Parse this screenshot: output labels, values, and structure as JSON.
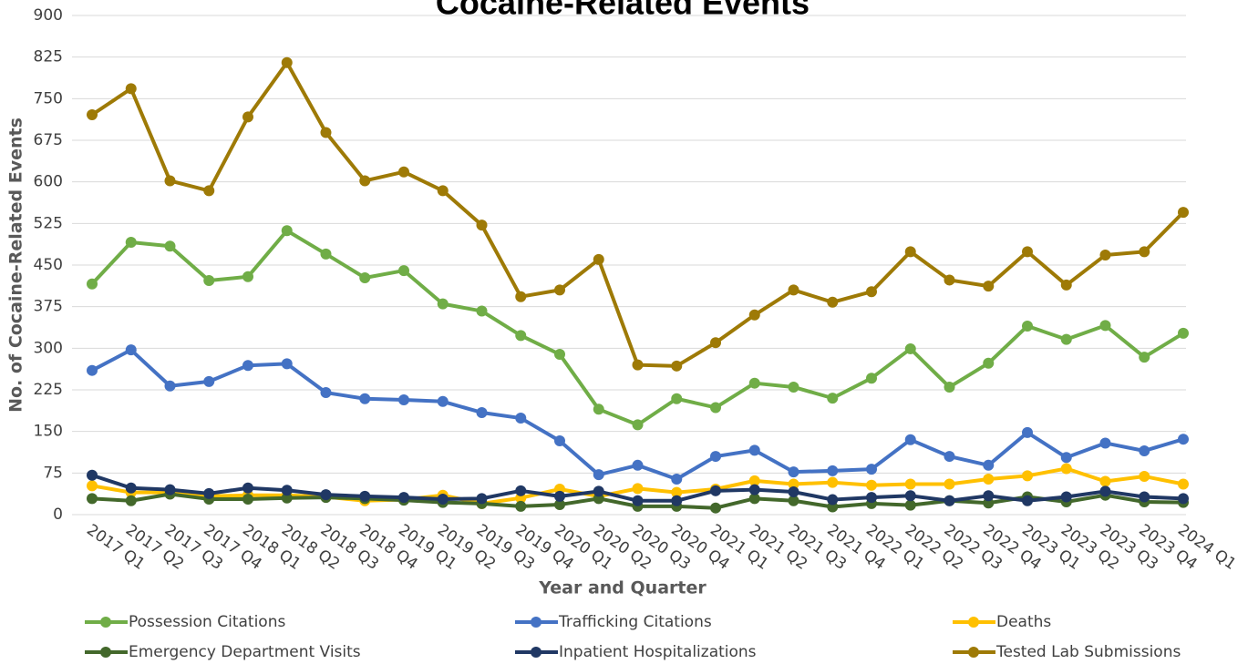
{
  "chart_data": {
    "type": "line",
    "title": "Cocaine-Related Events",
    "x_label": "Year and Quarter",
    "y_label": "No. of Cocaine-Related Events",
    "categories": [
      "2017 Q1",
      "2017 Q2",
      "2017 Q3",
      "2017 Q4",
      "2018 Q1",
      "2018 Q2",
      "2018 Q3",
      "2018 Q4",
      "2019 Q1",
      "2019 Q2",
      "2019 Q3",
      "2019 Q4",
      "2020 Q1",
      "2020 Q2",
      "2020 Q3",
      "2020 Q4",
      "2021 Q1",
      "2021 Q2",
      "2021 Q3",
      "2021 Q4",
      "2022 Q1",
      "2022 Q2",
      "2022 Q3",
      "2022 Q4",
      "2023 Q1",
      "2023 Q2",
      "2023 Q3",
      "2023 Q4",
      "2024 Q1"
    ],
    "series": [
      {
        "name": "Possession Citations",
        "color": "#70ad47",
        "values": [
          416,
          491,
          484,
          422,
          429,
          512,
          470,
          427,
          440,
          380,
          367,
          323,
          289,
          190,
          162,
          209,
          193,
          237,
          230,
          210,
          246,
          299,
          230,
          273,
          340,
          316,
          341,
          284,
          327
        ]
      },
      {
        "name": "Trafficking Citations",
        "color": "#4472c4",
        "values": [
          260,
          297,
          232,
          240,
          269,
          272,
          220,
          209,
          207,
          204,
          184,
          174,
          133,
          72,
          89,
          64,
          105,
          116,
          77,
          79,
          82,
          135,
          105,
          89,
          148,
          103,
          129,
          115,
          136
        ]
      },
      {
        "name": "Deaths",
        "color": "#ffc000",
        "values": [
          52,
          40,
          40,
          33,
          35,
          35,
          32,
          25,
          27,
          35,
          20,
          30,
          46,
          33,
          47,
          40,
          46,
          61,
          55,
          58,
          53,
          55,
          55,
          64,
          70,
          83,
          60,
          69,
          55
        ]
      },
      {
        "name": "Emergency Department Visits",
        "color": "#43682b",
        "values": [
          29,
          25,
          37,
          28,
          28,
          30,
          31,
          29,
          26,
          22,
          20,
          15,
          18,
          29,
          15,
          15,
          12,
          29,
          25,
          14,
          20,
          17,
          25,
          21,
          32,
          23,
          35,
          23,
          22
        ]
      },
      {
        "name": "Inpatient Hospitalizations",
        "color": "#203864",
        "values": [
          71,
          48,
          45,
          38,
          48,
          44,
          36,
          33,
          31,
          28,
          29,
          43,
          33,
          42,
          25,
          25,
          43,
          45,
          41,
          27,
          31,
          34,
          25,
          34,
          25,
          32,
          42,
          32,
          29
        ]
      },
      {
        "name": "Tested Lab Submissions",
        "color": "#9e7a06",
        "values": [
          721,
          768,
          602,
          584,
          717,
          815,
          689,
          602,
          618,
          584,
          522,
          393,
          405,
          460,
          270,
          268,
          310,
          360,
          405,
          383,
          402,
          474,
          423,
          412,
          474,
          414,
          468,
          474,
          545
        ]
      }
    ],
    "ylim": [
      0,
      900
    ],
    "yticks": [
      0,
      75,
      150,
      225,
      300,
      375,
      450,
      525,
      600,
      675,
      750,
      825,
      900
    ],
    "grid": true,
    "legend": "bottom"
  }
}
